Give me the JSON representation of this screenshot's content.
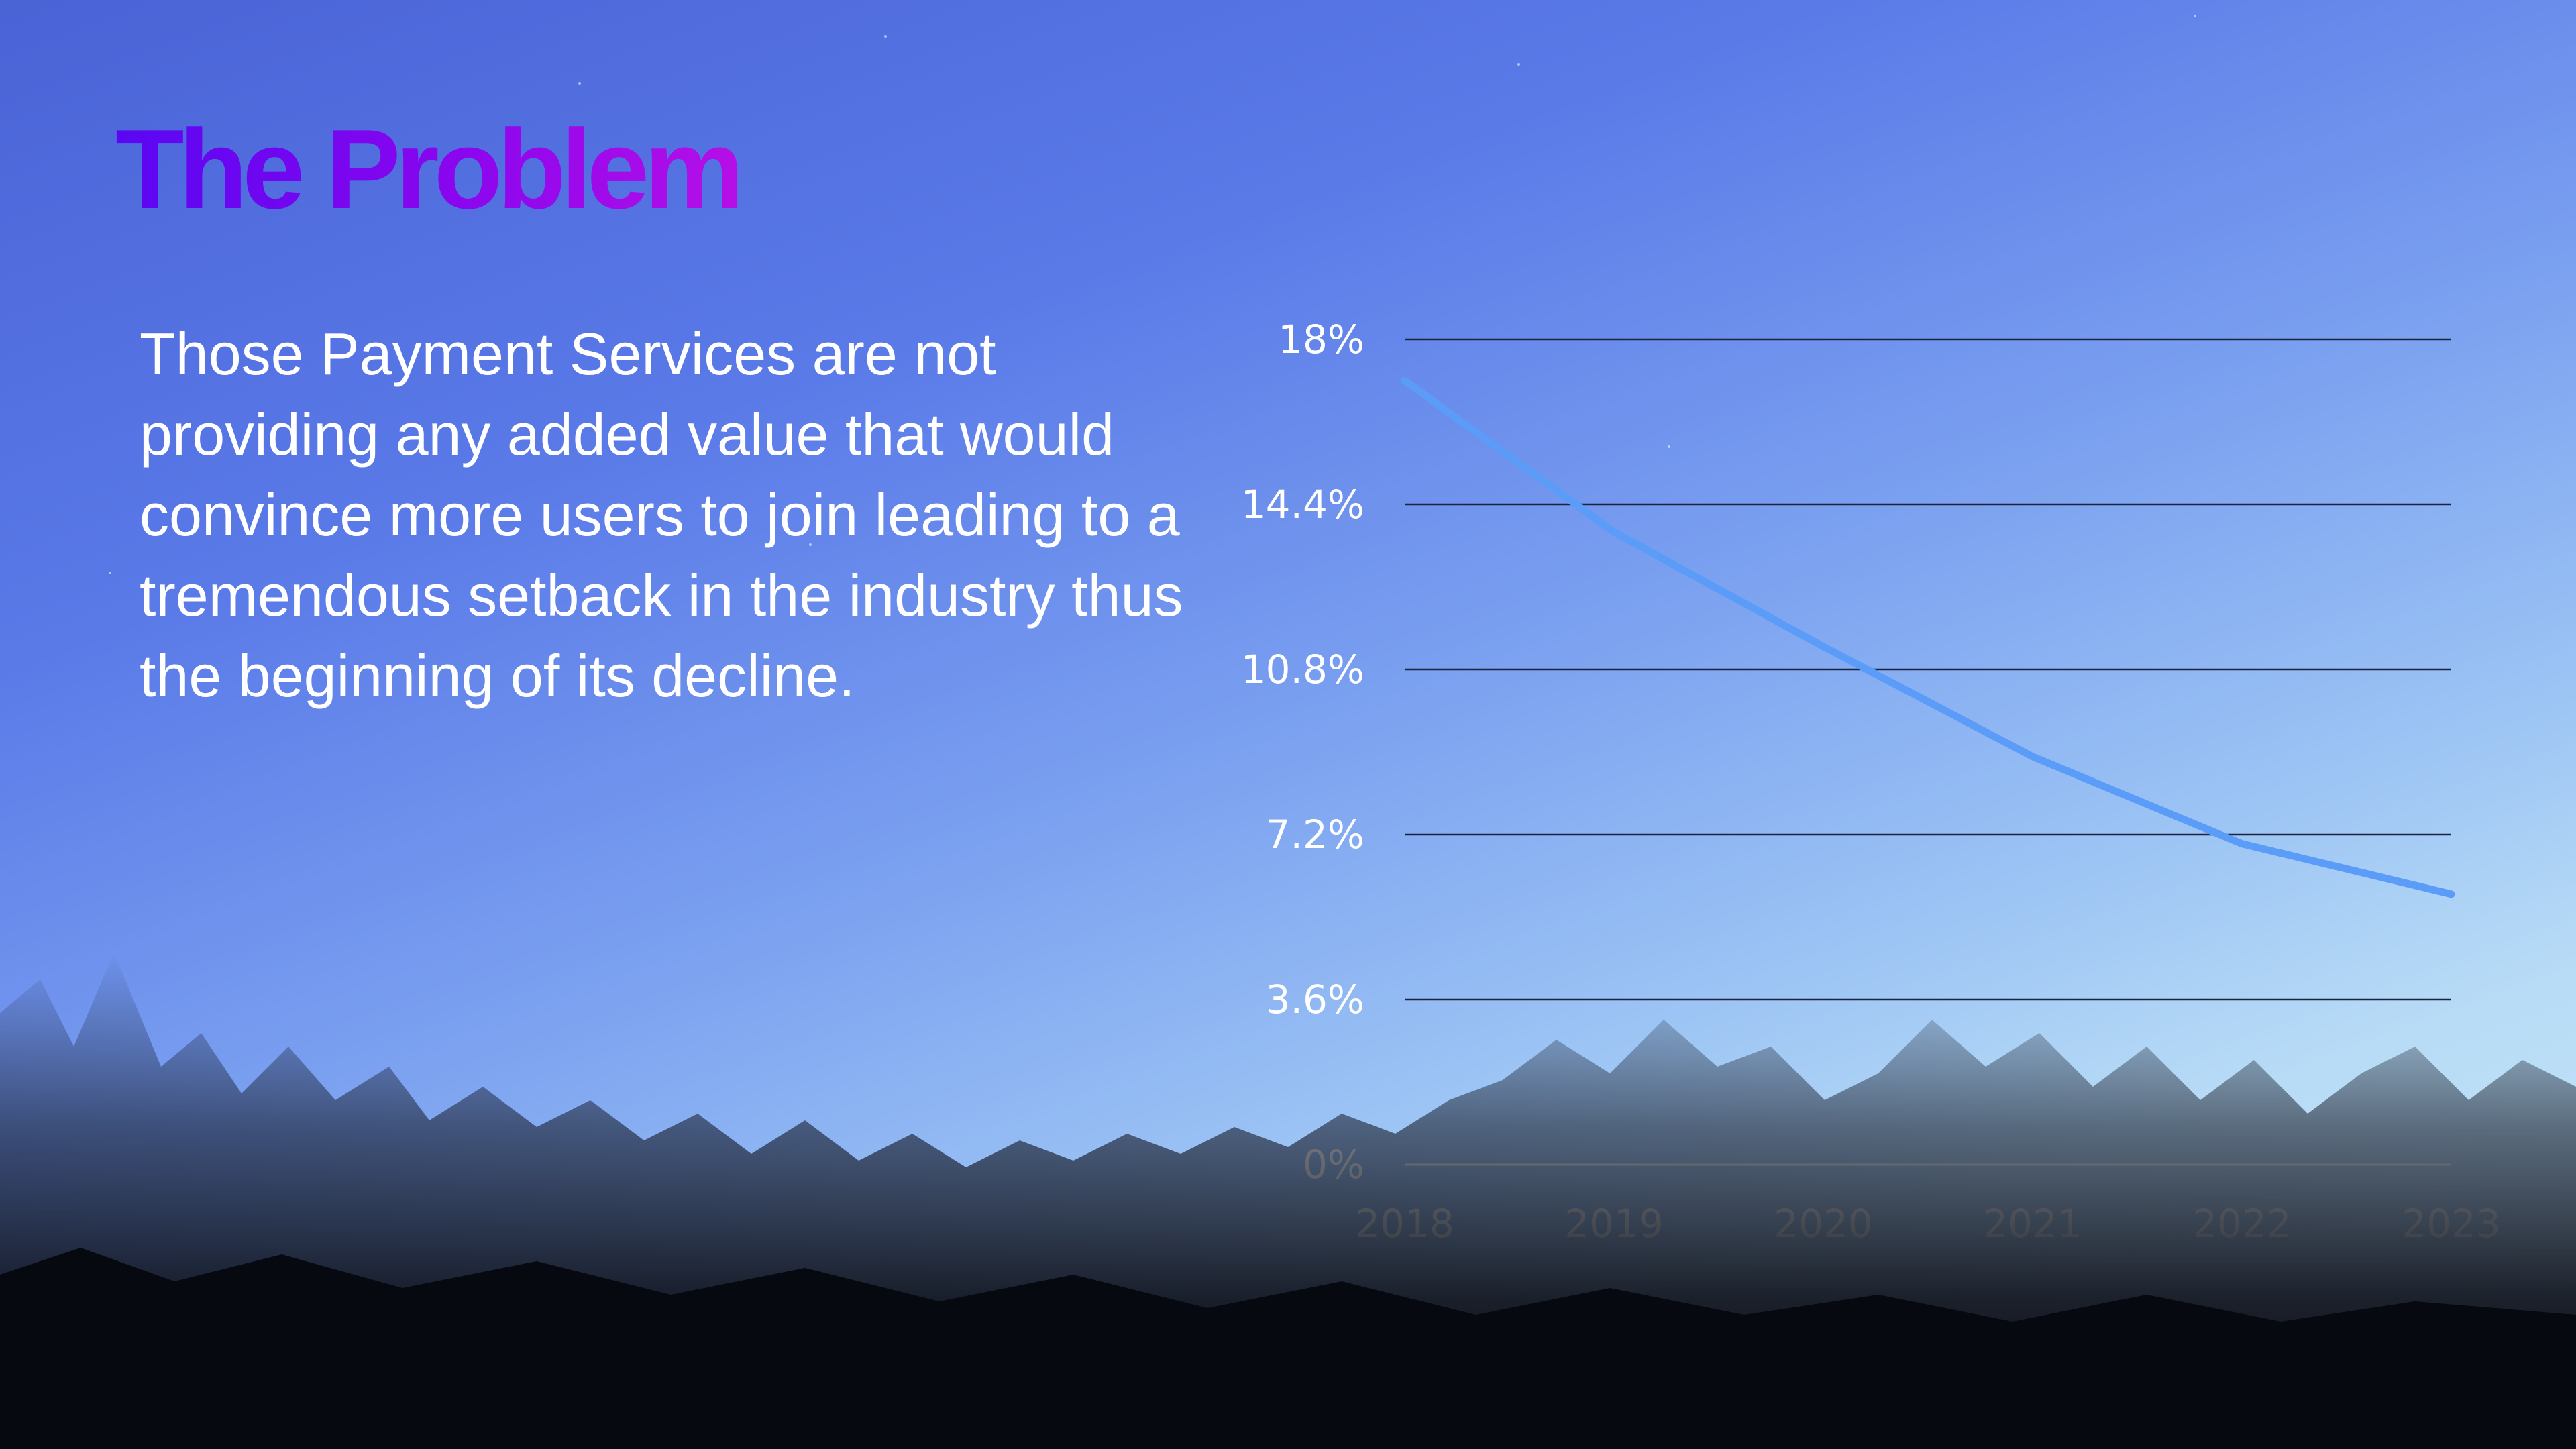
{
  "slide": {
    "title": "The Problem",
    "body": "Those Payment Services are not providing any added value that would convince more users to join leading to a tremendous setback in the industry thus the beginning of its decline."
  },
  "colors": {
    "title_gradient_start": "#5a06f2",
    "title_gradient_end": "#b50fe6",
    "line": "#5b9cf8",
    "gridline": "#1a2440",
    "baseline": "#ffffff",
    "text": "#ffffff"
  },
  "chart_data": {
    "type": "line",
    "categories": [
      "2018",
      "2019",
      "2020",
      "2021",
      "2022",
      "2023"
    ],
    "series": [
      {
        "values": [
          17.1,
          13.8,
          11.3,
          8.9,
          7.0,
          5.9
        ]
      }
    ],
    "yticks": [
      "0%",
      "3.6%",
      "7.2%",
      "10.8%",
      "14.4%",
      "18%"
    ],
    "ylim": [
      0,
      18
    ],
    "grid": true,
    "legend": "none"
  }
}
